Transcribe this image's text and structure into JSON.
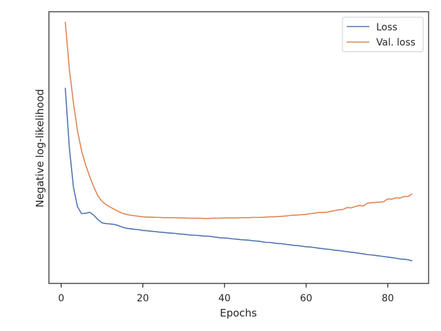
{
  "chart_data": {
    "type": "line",
    "title": "",
    "xlabel": "Epochs",
    "ylabel": "Negative log-likelihood",
    "xlim": [
      -3,
      90
    ],
    "ylim": [
      0,
      1
    ],
    "xticks": [
      0,
      20,
      40,
      60,
      80
    ],
    "yticks_visible": false,
    "grid": false,
    "legend_position": "top-right",
    "series": [
      {
        "name": "Loss",
        "color": "#4c72b0",
        "x": [
          1,
          2,
          3,
          4,
          5,
          6,
          7,
          8,
          9,
          10,
          11,
          12,
          13,
          14,
          15,
          16,
          17,
          18,
          19,
          20,
          21,
          22,
          23,
          24,
          25,
          26,
          27,
          28,
          29,
          30,
          31,
          32,
          33,
          34,
          35,
          36,
          37,
          38,
          39,
          40,
          41,
          42,
          43,
          44,
          45,
          46,
          47,
          48,
          49,
          50,
          51,
          52,
          53,
          54,
          55,
          56,
          57,
          58,
          59,
          60,
          61,
          62,
          63,
          64,
          65,
          66,
          67,
          68,
          69,
          70,
          71,
          72,
          73,
          74,
          75,
          76,
          77,
          78,
          79,
          80,
          81,
          82,
          83,
          84,
          85,
          86
        ],
        "values": [
          0.72,
          0.5,
          0.355,
          0.282,
          0.257,
          0.258,
          0.262,
          0.251,
          0.235,
          0.223,
          0.22,
          0.219,
          0.217,
          0.213,
          0.207,
          0.203,
          0.201,
          0.199,
          0.198,
          0.195,
          0.194,
          0.192,
          0.191,
          0.189,
          0.188,
          0.186,
          0.185,
          0.184,
          0.182,
          0.181,
          0.179,
          0.178,
          0.177,
          0.176,
          0.174,
          0.174,
          0.172,
          0.17,
          0.168,
          0.167,
          0.166,
          0.164,
          0.163,
          0.161,
          0.16,
          0.159,
          0.157,
          0.156,
          0.154,
          0.151,
          0.151,
          0.149,
          0.147,
          0.146,
          0.144,
          0.142,
          0.14,
          0.139,
          0.137,
          0.135,
          0.134,
          0.132,
          0.13,
          0.128,
          0.126,
          0.125,
          0.122,
          0.121,
          0.119,
          0.117,
          0.115,
          0.113,
          0.111,
          0.109,
          0.106,
          0.105,
          0.103,
          0.101,
          0.099,
          0.097,
          0.095,
          0.093,
          0.09,
          0.089,
          0.087,
          0.083
        ]
      },
      {
        "name": "Val. loss",
        "color": "#dd8452",
        "x": [
          1,
          2,
          3,
          4,
          5,
          6,
          7,
          8,
          9,
          10,
          11,
          12,
          13,
          14,
          15,
          16,
          17,
          18,
          19,
          20,
          21,
          22,
          23,
          24,
          25,
          26,
          27,
          28,
          29,
          30,
          31,
          32,
          33,
          34,
          35,
          36,
          37,
          38,
          39,
          40,
          41,
          42,
          43,
          44,
          45,
          46,
          47,
          48,
          49,
          50,
          51,
          52,
          53,
          54,
          55,
          56,
          57,
          58,
          59,
          60,
          61,
          62,
          63,
          64,
          65,
          66,
          67,
          68,
          69,
          70,
          71,
          72,
          73,
          74,
          75,
          76,
          77,
          78,
          79,
          80,
          81,
          82,
          83,
          84,
          85,
          86
        ],
        "values": [
          0.963,
          0.79,
          0.665,
          0.562,
          0.488,
          0.436,
          0.393,
          0.355,
          0.322,
          0.302,
          0.29,
          0.281,
          0.273,
          0.265,
          0.258,
          0.254,
          0.251,
          0.249,
          0.247,
          0.245,
          0.244,
          0.244,
          0.243,
          0.243,
          0.242,
          0.242,
          0.242,
          0.242,
          0.241,
          0.241,
          0.24,
          0.24,
          0.24,
          0.24,
          0.239,
          0.239,
          0.24,
          0.24,
          0.24,
          0.241,
          0.241,
          0.241,
          0.241,
          0.242,
          0.242,
          0.242,
          0.243,
          0.243,
          0.243,
          0.244,
          0.245,
          0.245,
          0.246,
          0.247,
          0.248,
          0.25,
          0.251,
          0.252,
          0.253,
          0.254,
          0.257,
          0.258,
          0.261,
          0.261,
          0.262,
          0.265,
          0.268,
          0.271,
          0.272,
          0.279,
          0.278,
          0.283,
          0.287,
          0.285,
          0.295,
          0.297,
          0.298,
          0.299,
          0.301,
          0.311,
          0.31,
          0.315,
          0.314,
          0.32,
          0.32,
          0.33
        ]
      }
    ]
  }
}
